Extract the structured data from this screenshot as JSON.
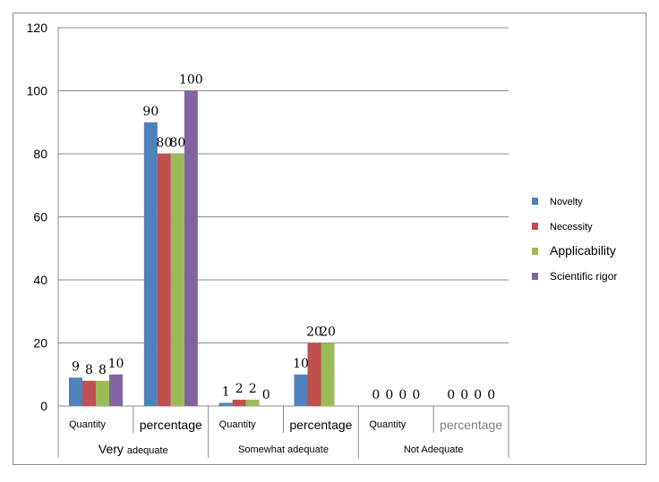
{
  "chart_data": {
    "type": "bar",
    "y_axis": {
      "min": 0,
      "max": 120,
      "step": 20,
      "ticks": [
        "0",
        "20",
        "40",
        "60",
        "80",
        "100",
        "120"
      ]
    },
    "grid": true,
    "legend_position": "right",
    "categories": [
      "Quantity",
      "percentage",
      "Quantity",
      "percentage",
      "Quantity",
      "percentage"
    ],
    "groups": [
      "Very adequate",
      "Somewhat adequate",
      "Not Adequate"
    ],
    "group_first_word": "Very",
    "group_rest_words": "adequate",
    "series": [
      {
        "name": "Novelty",
        "color": "#4f81bd",
        "values": [
          9,
          90,
          1,
          10,
          0,
          0
        ],
        "labels": [
          "9",
          "90",
          "1",
          "10",
          "0",
          "0"
        ]
      },
      {
        "name": "Necessity",
        "color": "#c0504d",
        "values": [
          8,
          80,
          2,
          20,
          0,
          0
        ],
        "labels": [
          "8",
          "80",
          "2",
          "20",
          "0",
          "0"
        ]
      },
      {
        "name": "Applicability",
        "color": "#9bbb59",
        "values": [
          8,
          80,
          2,
          20,
          0,
          0
        ],
        "labels": [
          "8",
          "80",
          "2",
          "20",
          "0",
          "0"
        ]
      },
      {
        "name": "Scientific rigor",
        "color": "#8064a2",
        "values": [
          10,
          100,
          0,
          0,
          0,
          0
        ],
        "labels": [
          "10",
          "100",
          "0",
          "",
          "0",
          "0"
        ]
      }
    ]
  }
}
